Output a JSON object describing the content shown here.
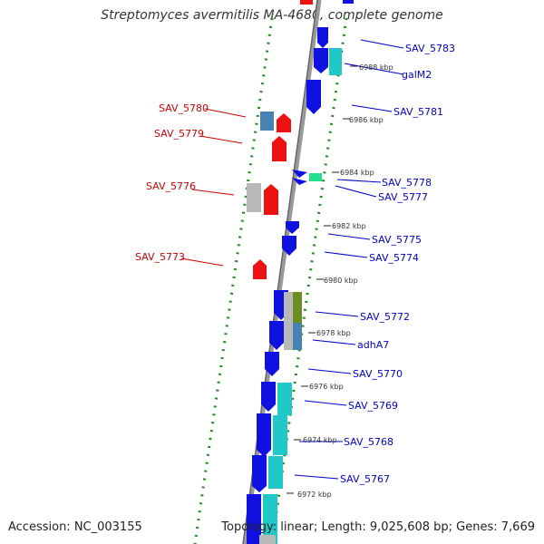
{
  "title": "Streptomyces avermitilis MA-4680, complete genome",
  "footer": {
    "accession": "Accession: NC_003155",
    "topology": "Topology: linear; Length: 9,025,608 bp; Genes: 7,669"
  },
  "colors": {
    "forward": "#1010e0",
    "reverse": "#ee1111",
    "cyan": "#20c8c8",
    "grey": "#b8b8b8",
    "steel": "#4682b4",
    "olive": "#6b8e23",
    "green": "#20e090",
    "dots": "#228822",
    "backbone": "#888888"
  },
  "kbp_ticks": [
    "6988 kbp",
    "6986 kbp",
    "6984 kbp",
    "6982 kbp",
    "6980 kbp",
    "6978 kbp",
    "6976 kbp",
    "6974 kbp",
    "6972 kbp"
  ],
  "forward_labels": [
    "SAV_5783",
    "galM2",
    "SAV_5781",
    "SAV_5778",
    "SAV_5777",
    "SAV_5775",
    "SAV_5774",
    "SAV_5772",
    "adhA7",
    "SAV_5770",
    "SAV_5769",
    "SAV_5768",
    "SAV_5767"
  ],
  "reverse_labels": [
    "SAV_5780",
    "SAV_5779",
    "SAV_5776",
    "SAV_5773"
  ]
}
